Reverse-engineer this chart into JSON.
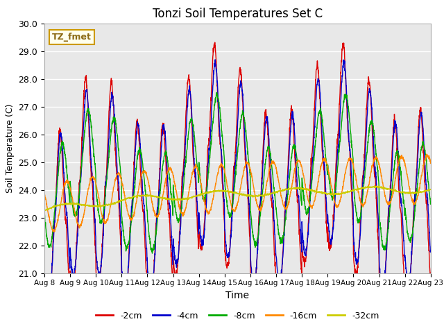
{
  "title": "Tonzi Soil Temperatures Set C",
  "xlabel": "Time",
  "ylabel": "Soil Temperature (C)",
  "ylim": [
    21.0,
    30.0
  ],
  "yticks": [
    21.0,
    22.0,
    23.0,
    24.0,
    25.0,
    26.0,
    27.0,
    28.0,
    29.0,
    30.0
  ],
  "start_day": 8,
  "n_days": 15,
  "points_per_day": 144,
  "annotation_text": "TZ_fmet",
  "bg_color": "#e8e8e8",
  "lines": [
    {
      "label": "-2cm",
      "color": "#dd0000"
    },
    {
      "label": "-4cm",
      "color": "#0000cc"
    },
    {
      "label": "-8cm",
      "color": "#00aa00"
    },
    {
      "label": "-16cm",
      "color": "#ff8800"
    },
    {
      "label": "-32cm",
      "color": "#cccc00"
    }
  ]
}
